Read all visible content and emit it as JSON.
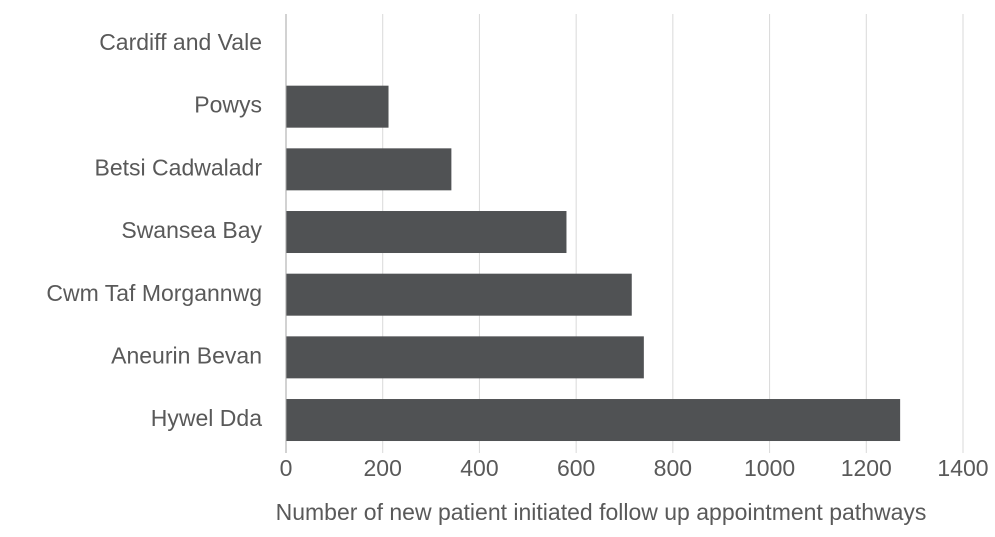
{
  "chart_data": {
    "type": "bar",
    "orientation": "horizontal",
    "categories": [
      "Cardiff and Vale",
      "Powys",
      "Betsi Cadwaladr",
      "Swansea Bay",
      "Cwm Taf Morgannwg",
      "Aneurin Bevan",
      "Hywel Dda"
    ],
    "values": [
      0,
      212,
      342,
      580,
      715,
      740,
      1270
    ],
    "xlabel": "Number of new patient initiated follow up appointment pathways",
    "ylabel": "",
    "xlim": [
      0,
      1400
    ],
    "xticks": [
      "0",
      "200",
      "400",
      "600",
      "800",
      "1000",
      "1200",
      "1400"
    ],
    "grid": "vertical",
    "bar_color": "#505254"
  }
}
